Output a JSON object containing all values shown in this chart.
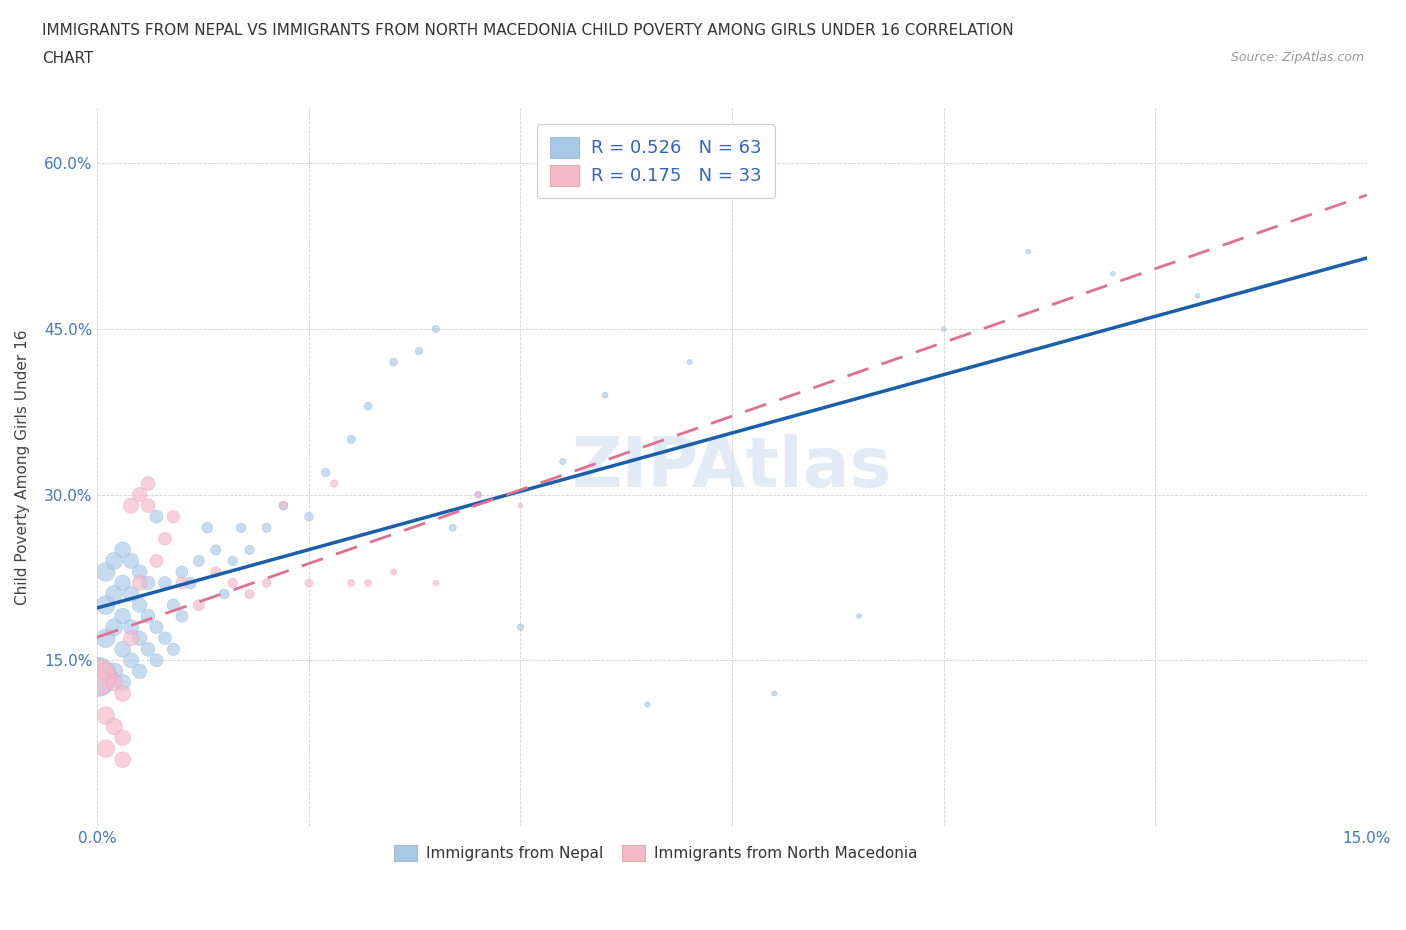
{
  "title_line1": "IMMIGRANTS FROM NEPAL VS IMMIGRANTS FROM NORTH MACEDONIA CHILD POVERTY AMONG GIRLS UNDER 16 CORRELATION",
  "title_line2": "CHART",
  "source_text": "Source: ZipAtlas.com",
  "ylabel": "Child Poverty Among Girls Under 16",
  "xlim": [
    0.0,
    0.15
  ],
  "ylim": [
    0.0,
    0.65
  ],
  "nepal_color": "#a8c8e8",
  "nepal_edge_color": "#7aabda",
  "macedonia_color": "#f5b8c8",
  "macedonia_edge_color": "#e88aaa",
  "trend_nepal_color": "#1a5fa8",
  "trend_macedonia_color": "#e07090",
  "nepal_R": 0.526,
  "nepal_N": 63,
  "macedonia_R": 0.175,
  "macedonia_N": 33,
  "legend_label_nepal": "Immigrants from Nepal",
  "legend_label_macedonia": "Immigrants from North Macedonia",
  "watermark": "ZIPAtlas",
  "nepal_x": [
    0.0,
    0.001,
    0.001,
    0.001,
    0.002,
    0.002,
    0.002,
    0.002,
    0.003,
    0.003,
    0.003,
    0.003,
    0.003,
    0.004,
    0.004,
    0.004,
    0.004,
    0.005,
    0.005,
    0.005,
    0.005,
    0.006,
    0.006,
    0.006,
    0.007,
    0.007,
    0.007,
    0.008,
    0.008,
    0.009,
    0.009,
    0.01,
    0.01,
    0.011,
    0.012,
    0.013,
    0.014,
    0.015,
    0.016,
    0.017,
    0.018,
    0.02,
    0.022,
    0.025,
    0.027,
    0.03,
    0.032,
    0.035,
    0.038,
    0.04,
    0.042,
    0.045,
    0.05,
    0.055,
    0.06,
    0.065,
    0.07,
    0.08,
    0.09,
    0.1,
    0.11,
    0.12,
    0.13
  ],
  "nepal_y": [
    0.135,
    0.17,
    0.2,
    0.23,
    0.14,
    0.18,
    0.21,
    0.24,
    0.13,
    0.16,
    0.19,
    0.22,
    0.25,
    0.15,
    0.18,
    0.21,
    0.24,
    0.14,
    0.17,
    0.2,
    0.23,
    0.16,
    0.19,
    0.22,
    0.15,
    0.18,
    0.28,
    0.17,
    0.22,
    0.16,
    0.2,
    0.19,
    0.23,
    0.22,
    0.24,
    0.27,
    0.25,
    0.21,
    0.24,
    0.27,
    0.25,
    0.27,
    0.29,
    0.28,
    0.32,
    0.35,
    0.38,
    0.42,
    0.43,
    0.45,
    0.27,
    0.3,
    0.18,
    0.33,
    0.39,
    0.11,
    0.42,
    0.12,
    0.19,
    0.45,
    0.52,
    0.5,
    0.48
  ],
  "nepal_sizes": [
    800,
    180,
    180,
    180,
    150,
    150,
    150,
    150,
    130,
    130,
    130,
    130,
    130,
    120,
    120,
    120,
    120,
    110,
    110,
    110,
    110,
    100,
    100,
    100,
    90,
    90,
    90,
    85,
    85,
    80,
    80,
    75,
    75,
    70,
    65,
    60,
    55,
    50,
    50,
    48,
    46,
    44,
    42,
    40,
    38,
    36,
    34,
    32,
    30,
    28,
    26,
    24,
    22,
    20,
    18,
    16,
    15,
    14,
    13,
    13,
    12,
    12,
    12
  ],
  "macedonia_x": [
    0.0,
    0.001,
    0.001,
    0.001,
    0.002,
    0.002,
    0.003,
    0.003,
    0.003,
    0.004,
    0.004,
    0.005,
    0.005,
    0.006,
    0.006,
    0.007,
    0.008,
    0.009,
    0.01,
    0.012,
    0.014,
    0.016,
    0.018,
    0.02,
    0.022,
    0.025,
    0.028,
    0.03,
    0.032,
    0.035,
    0.04,
    0.045,
    0.05
  ],
  "macedonia_y": [
    0.135,
    0.1,
    0.14,
    0.07,
    0.13,
    0.09,
    0.12,
    0.08,
    0.06,
    0.29,
    0.17,
    0.3,
    0.22,
    0.31,
    0.29,
    0.24,
    0.26,
    0.28,
    0.22,
    0.2,
    0.23,
    0.22,
    0.21,
    0.22,
    0.29,
    0.22,
    0.31,
    0.22,
    0.22,
    0.23,
    0.22,
    0.3,
    0.29
  ],
  "macedonia_sizes": [
    700,
    160,
    160,
    160,
    140,
    140,
    130,
    130,
    130,
    120,
    120,
    110,
    110,
    100,
    100,
    90,
    85,
    80,
    75,
    65,
    55,
    48,
    44,
    40,
    36,
    32,
    28,
    25,
    23,
    20,
    17,
    15,
    13
  ]
}
